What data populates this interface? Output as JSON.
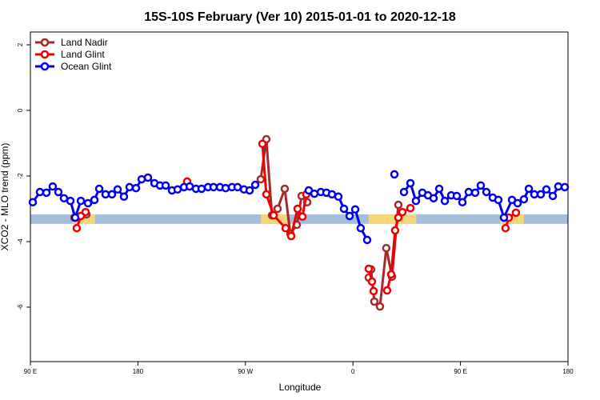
{
  "chart_data": {
    "type": "line",
    "title": "15S-10S February (Ver 10)   2015-01-01 to 2020-12-18",
    "xlabel": "Longitude",
    "ylabel": "XCO2 - MLO trend (ppm)",
    "xlim": [
      90,
      540
    ],
    "ylim": [
      -7.66,
      2.39
    ],
    "xticks": [
      {
        "value": 90,
        "label": "90 E"
      },
      {
        "value": 180,
        "label": "180"
      },
      {
        "value": 270,
        "label": "90 W"
      },
      {
        "value": 360,
        "label": "0"
      },
      {
        "value": 450,
        "label": "90 E"
      },
      {
        "value": 540,
        "label": "180"
      }
    ],
    "yticks": [
      2,
      0,
      -2,
      -4,
      -6
    ],
    "legend": "top-left",
    "band": {
      "range": [
        -3.17,
        -3.46
      ],
      "color": "#a4bedc",
      "highlight_color": "#f5d67a",
      "highlights": [
        [
          125,
          144
        ],
        [
          283,
          305
        ],
        [
          373,
          413
        ],
        [
          483,
          503
        ]
      ]
    },
    "series": [
      {
        "name": "Land Nadir",
        "color": "#a52a2a",
        "x": [
          126.8,
          136.9,
          null,
          282.8,
          287.5,
          292.2,
          296.9,
          302.9,
          307.6,
          313.0,
          317.0,
          321.7,
          null,
          373.2,
          375.2,
          377.9,
          382.6,
          387.9,
          392.7,
          398.0,
          null,
          486.4
        ],
        "values": [
          -3.27,
          -3.17,
          null,
          -2.1,
          -0.88,
          -3.2,
          -3.0,
          -2.39,
          -3.76,
          -3.49,
          -2.61,
          -2.8,
          null,
          -5.1,
          -4.85,
          -5.83,
          -5.98,
          -4.2,
          -5.07,
          -2.88,
          null,
          -3.27
        ]
      },
      {
        "name": "Land Glint",
        "color": "#ee0000",
        "x": [
          128.8,
          132.2,
          136.2,
          null,
          221.2,
          null,
          284.2,
          287.5,
          293.6,
          303.6,
          308.3,
          313.6,
          317.7,
          321.0,
          null,
          373.2,
          375.9,
          377.3,
          null,
          388.6,
          392.0,
          395.3,
          398.0,
          401.4,
          408.1,
          null,
          487.7,
          490.4,
          496.4
        ],
        "values": [
          -3.59,
          -3.22,
          -3.1,
          null,
          -2.17,
          null,
          -1.02,
          -2.56,
          -3.2,
          -3.59,
          -3.83,
          -3.0,
          -3.24,
          -2.56,
          null,
          -4.83,
          -5.22,
          -5.51,
          null,
          -5.49,
          -5.0,
          -3.66,
          -3.27,
          -3.1,
          -2.98,
          null,
          -3.59,
          -3.27,
          -3.12
        ]
      },
      {
        "name": "Ocean Glint",
        "color": "#0000ee",
        "x": [
          92.0,
          98.0,
          103.4,
          108.7,
          113.4,
          118.1,
          123.5,
          127.5,
          132.2,
          138.2,
          143.6,
          147.6,
          152.9,
          158.3,
          163.0,
          168.3,
          173.0,
          178.4,
          183.1,
          188.4,
          193.8,
          198.5,
          203.2,
          208.5,
          213.2,
          218.6,
          223.3,
          228.6,
          233.3,
          238.7,
          243.3,
          248.7,
          253.4,
          258.7,
          263.4,
          268.8,
          273.5,
          278.2,
          null,
          323.0,
          327.7,
          333.1,
          337.8,
          342.4,
          347.8,
          352.5,
          357.2,
          361.9,
          366.5,
          371.9,
          null,
          394.7,
          null,
          402.7,
          408.1,
          412.7,
          418.1,
          422.8,
          427.5,
          432.2,
          436.9,
          442.2,
          446.9,
          451.6,
          456.9,
          462.3,
          467.0,
          471.7,
          477.0,
          481.7,
          486.4,
          493.1,
          497.8,
          503.1,
          507.2,
          511.8,
          517.2,
          521.9,
          527.3,
          531.9,
          537.3
        ],
        "values": [
          -2.8,
          -2.49,
          -2.51,
          -2.32,
          -2.49,
          -2.68,
          -2.76,
          -3.27,
          -2.76,
          -2.83,
          -2.73,
          -2.39,
          -2.56,
          -2.56,
          -2.41,
          -2.63,
          -2.34,
          -2.37,
          -2.1,
          -2.05,
          -2.22,
          -2.29,
          -2.29,
          -2.44,
          -2.41,
          -2.34,
          -2.32,
          -2.39,
          -2.39,
          -2.34,
          -2.34,
          -2.34,
          -2.37,
          -2.34,
          -2.34,
          -2.41,
          -2.44,
          -2.27,
          null,
          -2.44,
          -2.54,
          -2.49,
          -2.51,
          -2.56,
          -2.63,
          -3.0,
          -3.22,
          -3.02,
          -3.59,
          -3.95,
          null,
          -1.95,
          null,
          -2.49,
          -2.22,
          -2.76,
          -2.51,
          -2.59,
          -2.68,
          -2.39,
          -2.76,
          -2.59,
          -2.61,
          -2.8,
          -2.49,
          -2.51,
          -2.29,
          -2.49,
          -2.66,
          -2.73,
          -3.27,
          -2.73,
          -2.83,
          -2.71,
          -2.39,
          -2.56,
          -2.56,
          -2.41,
          -2.61,
          -2.32,
          -2.34
        ]
      }
    ]
  }
}
